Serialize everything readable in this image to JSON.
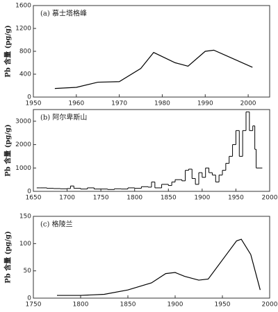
{
  "chart_data": [
    {
      "type": "line",
      "annotation": "(a) 慕士塔格峰",
      "ylabel": "Pb 含量 (pg/g)",
      "color": "#000000",
      "x": [
        1955,
        1960,
        1965,
        1970,
        1975,
        1978,
        1983,
        1986,
        1990,
        1992,
        1995,
        2001
      ],
      "values": [
        150,
        170,
        260,
        270,
        500,
        780,
        600,
        540,
        800,
        820,
        720,
        520
      ],
      "xlim": [
        1950,
        2005
      ],
      "xticks": [
        1950,
        1960,
        1970,
        1980,
        1990,
        2000
      ],
      "ylim": [
        0,
        1600
      ],
      "yticks": [
        0,
        400,
        800,
        1200,
        1600
      ]
    },
    {
      "type": "step",
      "annotation": "(b) 阿尔卑斯山",
      "ylabel": "Pb 含量 (pg/g)",
      "color": "#000000",
      "x": [
        1655,
        1660,
        1670,
        1680,
        1690,
        1700,
        1705,
        1710,
        1720,
        1730,
        1740,
        1750,
        1760,
        1770,
        1780,
        1790,
        1800,
        1810,
        1820,
        1825,
        1830,
        1840,
        1850,
        1855,
        1860,
        1870,
        1875,
        1880,
        1885,
        1890,
        1895,
        1900,
        1905,
        1910,
        1915,
        1920,
        1925,
        1930,
        1935,
        1940,
        1945,
        1950,
        1955,
        1960,
        1965,
        1970,
        1975,
        1978,
        1980,
        1985
      ],
      "values": [
        150,
        150,
        130,
        120,
        110,
        120,
        230,
        130,
        100,
        150,
        100,
        100,
        80,
        110,
        100,
        150,
        130,
        200,
        180,
        400,
        150,
        300,
        250,
        400,
        500,
        450,
        900,
        950,
        550,
        300,
        800,
        600,
        1000,
        800,
        700,
        400,
        700,
        900,
        1200,
        1500,
        2000,
        2600,
        1500,
        2600,
        3400,
        2600,
        2800,
        1800,
        1000,
        1000
      ],
      "xlim": [
        1650,
        2000
      ],
      "xticks": [
        1650,
        1700,
        1750,
        1800,
        1850,
        1900,
        1950,
        2000
      ],
      "ylim": [
        0,
        3500
      ],
      "yticks": [
        0,
        1000,
        2000,
        3000
      ]
    },
    {
      "type": "line",
      "annotation": "(c) 格陵兰",
      "ylabel": "Pb 含量 (pg/g)",
      "color": "#000000",
      "x": [
        1775,
        1800,
        1825,
        1850,
        1875,
        1890,
        1900,
        1910,
        1925,
        1935,
        1950,
        1965,
        1970,
        1980,
        1990
      ],
      "values": [
        5,
        5,
        7,
        15,
        28,
        45,
        47,
        40,
        33,
        35,
        70,
        105,
        108,
        80,
        15
      ],
      "xlim": [
        1750,
        2000
      ],
      "xticks": [
        1750,
        1800,
        1850,
        1900,
        1950,
        2000
      ],
      "ylim": [
        0,
        150
      ],
      "yticks": [
        0,
        50,
        100,
        150
      ]
    }
  ]
}
